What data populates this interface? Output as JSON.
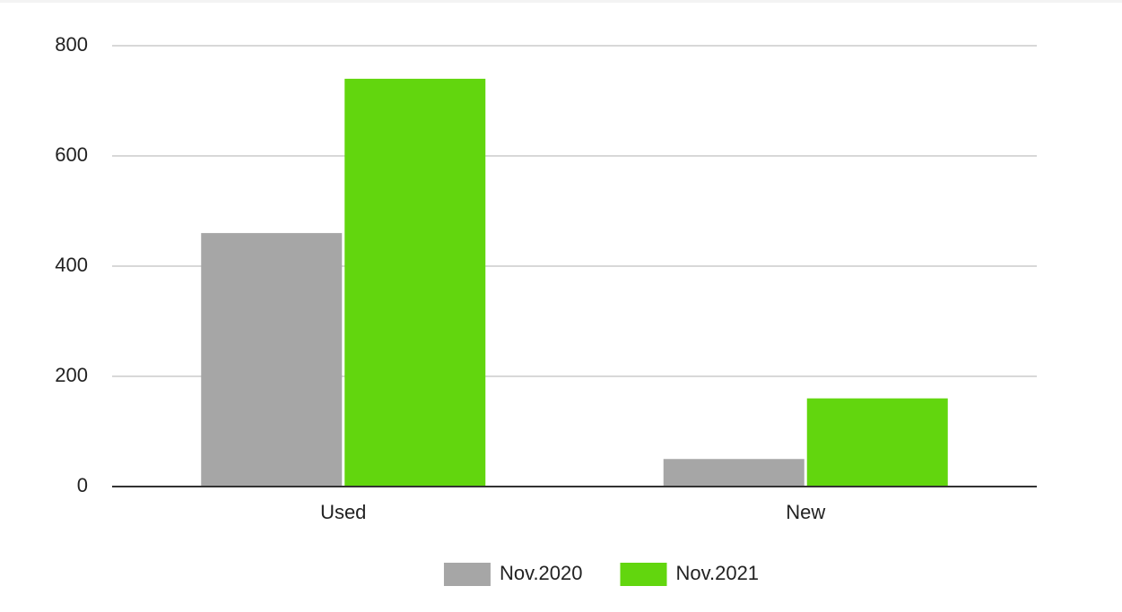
{
  "chart_data": {
    "type": "bar",
    "categories": [
      "Used",
      "New"
    ],
    "series": [
      {
        "name": "Nov.2020",
        "color": "#a6a6a6",
        "values": [
          460,
          50
        ]
      },
      {
        "name": "Nov.2021",
        "color": "#62d60e",
        "values": [
          740,
          160
        ]
      }
    ],
    "ylim": [
      0,
      800
    ],
    "yticks": [
      0,
      200,
      400,
      600,
      800
    ],
    "grid": true,
    "legend": "bottom"
  }
}
